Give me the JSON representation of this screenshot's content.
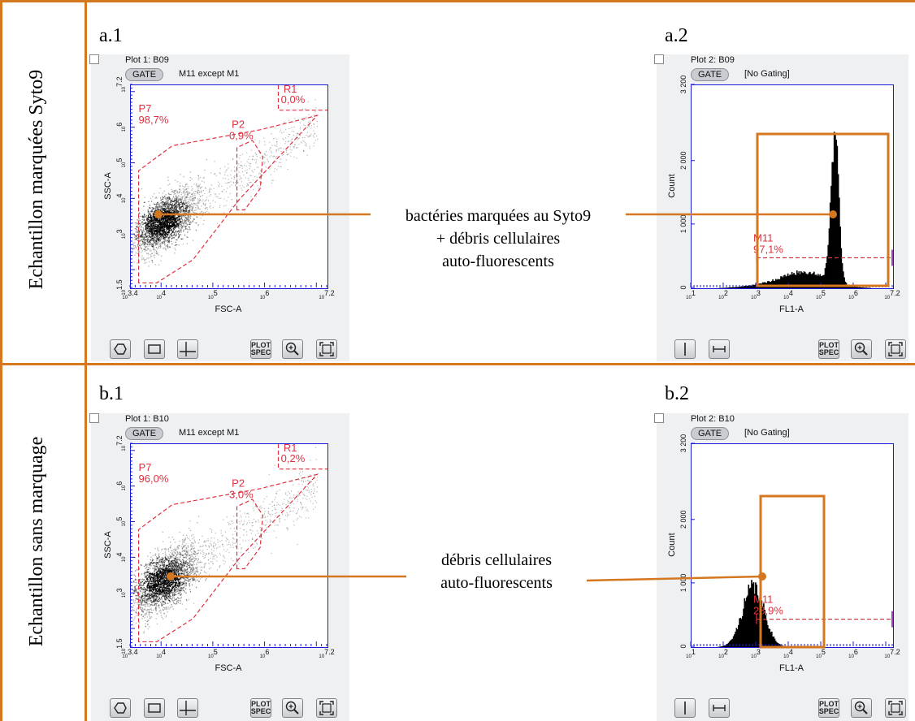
{
  "rows": [
    {
      "label": "Echantillon marquées Syto9"
    },
    {
      "label": "Echantillon sans marquage"
    }
  ],
  "panels": {
    "a1": {
      "label": "a.1",
      "plot_title": "Plot 1: B09",
      "gate_button": "GATE",
      "gate_info": "M11 except M1"
    },
    "a2": {
      "label": "a.2",
      "plot_title": "Plot 2: B09",
      "gate_button": "GATE",
      "gate_info": "[No Gating]"
    },
    "b1": {
      "label": "b.1",
      "plot_title": "Plot 1: B10",
      "gate_button": "GATE",
      "gate_info": "M11 except M1"
    },
    "b2": {
      "label": "b.2",
      "plot_title": "Plot 2: B10",
      "gate_button": "GATE",
      "gate_info": "[No Gating]"
    }
  },
  "toolbar": {
    "plot_spec_line1": "PLOT",
    "plot_spec_line2": "SPEC"
  },
  "annotations": {
    "a": [
      "bactéries marquées au Syto9",
      "+ débris cellulaires",
      "auto-fluorescents"
    ],
    "b": [
      "débris cellulaires",
      "auto-fluorescents"
    ]
  },
  "colors": {
    "accent": "#d4771f",
    "gate": "#e03040",
    "axis": "#1a1adb",
    "panel_bg": "#eef0f2"
  },
  "chart_data": [
    {
      "id": "a1",
      "type": "scatter",
      "xlabel": "FSC-A",
      "ylabel": "SSC-A",
      "xlim": [
        3.4,
        7.2
      ],
      "ylim": [
        1.5,
        7.2
      ],
      "scale": "log10",
      "xticks": [
        "10^3.4",
        "10^4",
        "10^5",
        "10^6",
        "10^7.2"
      ],
      "yticks": [
        "10^1.5",
        "10^3",
        "10^4",
        "10^5",
        "10^6",
        "10^7.2"
      ],
      "gates": [
        {
          "name": "P7",
          "value": "98,7%"
        },
        {
          "name": "R1",
          "value": "0,0%"
        },
        {
          "name": "P2",
          "value": "0,9%"
        }
      ]
    },
    {
      "id": "a2",
      "type": "histogram",
      "xlabel": "FL1-A",
      "ylabel": "Count",
      "xlim": [
        1,
        7.2
      ],
      "ylim": [
        0,
        3200
      ],
      "xscale": "log10",
      "xticks": [
        "10^1",
        "10^2",
        "10^3",
        "10^4",
        "10^5",
        "10^6",
        "10^7.2"
      ],
      "yticks": [
        "0",
        "1 000",
        "2 000",
        "3 200"
      ],
      "peak_log_fl1": 5.4,
      "peak_count": 2350,
      "markers": [
        {
          "name": "M11",
          "value": "97,1%",
          "range": [
            3,
            7.2
          ]
        }
      ]
    },
    {
      "id": "b1",
      "type": "scatter",
      "xlabel": "FSC-A",
      "ylabel": "SSC-A",
      "xlim": [
        3.4,
        7.2
      ],
      "ylim": [
        1.5,
        7.2
      ],
      "scale": "log10",
      "xticks": [
        "10^3.4",
        "10^4",
        "10^5",
        "10^6",
        "10^7.2"
      ],
      "yticks": [
        "10^1.5",
        "10^3",
        "10^4",
        "10^5",
        "10^6",
        "10^7.2"
      ],
      "gates": [
        {
          "name": "P7",
          "value": "96,0%"
        },
        {
          "name": "R1",
          "value": "0,2%"
        },
        {
          "name": "P2",
          "value": "3,0%"
        }
      ]
    },
    {
      "id": "b2",
      "type": "histogram",
      "xlabel": "FL1-A",
      "ylabel": "Count",
      "xlim": [
        1,
        7.2
      ],
      "ylim": [
        0,
        3200
      ],
      "xscale": "log10",
      "xticks": [
        "10^1",
        "10^2",
        "10^3",
        "10^4",
        "10^5",
        "10^6",
        "10^7.2"
      ],
      "yticks": [
        "0",
        "1 000",
        "2 000",
        "3 200"
      ],
      "peak_log_fl1": 2.9,
      "peak_count": 950,
      "markers": [
        {
          "name": "M11",
          "value": "28,9%",
          "range": [
            3,
            7.2
          ]
        }
      ]
    }
  ]
}
